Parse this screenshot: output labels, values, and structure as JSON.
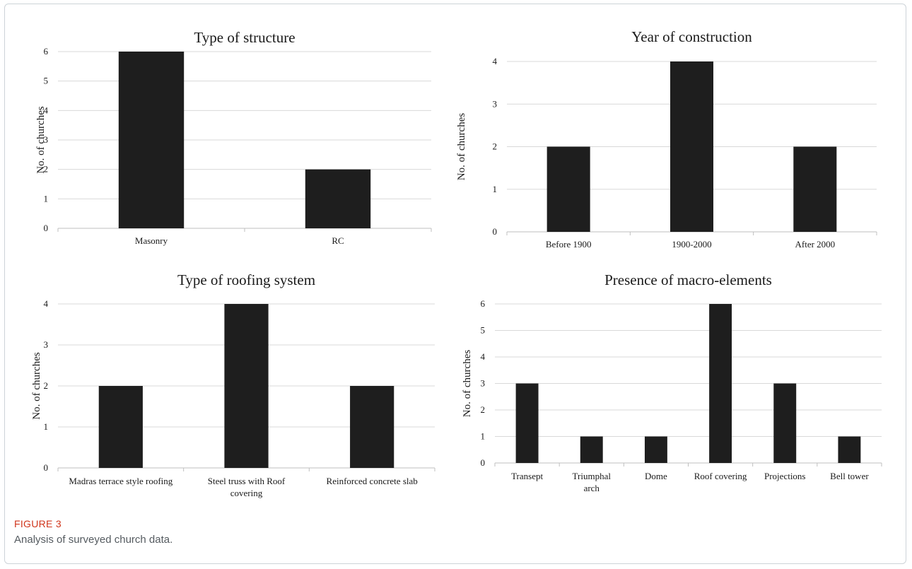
{
  "figure": {
    "label": "FIGURE 3",
    "caption": "Analysis of surveyed church data."
  },
  "colors": {
    "bar": "#1e1e1e",
    "grid": "#d9d9d9",
    "axis": "#bfbfbf",
    "text": "#1a1a1a"
  },
  "chart_data": [
    {
      "type": "bar",
      "title": "Type of structure",
      "ylabel": "No. of churches",
      "xlabel": "",
      "categories": [
        [
          "Masonry"
        ],
        [
          "RC"
        ]
      ],
      "values": [
        6,
        2
      ],
      "ylim": [
        0,
        6
      ],
      "yticks": [
        0,
        1,
        2,
        3,
        4,
        5,
        6
      ],
      "grid": true
    },
    {
      "type": "bar",
      "title": "Year of construction",
      "ylabel": "No. of churches",
      "xlabel": "",
      "categories": [
        [
          "Before 1900"
        ],
        [
          "1900-2000"
        ],
        [
          "After 2000"
        ]
      ],
      "values": [
        2,
        4,
        2
      ],
      "ylim": [
        0,
        4
      ],
      "yticks": [
        0,
        1,
        2,
        3,
        4
      ],
      "grid": true
    },
    {
      "type": "bar",
      "title": "Type of roofing system",
      "ylabel": "No. of churches",
      "xlabel": "",
      "categories": [
        [
          "Madras terrace style roofing"
        ],
        [
          "Steel truss with Roof",
          "covering"
        ],
        [
          "Reinforced concrete slab"
        ]
      ],
      "values": [
        2,
        4,
        2
      ],
      "ylim": [
        0,
        4
      ],
      "yticks": [
        0,
        1,
        2,
        3,
        4
      ],
      "grid": true
    },
    {
      "type": "bar",
      "title": "Presence of macro-elements",
      "ylabel": "No. of churches",
      "xlabel": "",
      "categories": [
        [
          "Transept"
        ],
        [
          "Triumphal",
          "arch"
        ],
        [
          "Dome"
        ],
        [
          "Roof covering"
        ],
        [
          "Projections"
        ],
        [
          "Bell tower"
        ]
      ],
      "values": [
        3,
        1,
        1,
        6,
        3,
        1
      ],
      "ylim": [
        0,
        6
      ],
      "yticks": [
        0,
        1,
        2,
        3,
        4,
        5,
        6
      ],
      "grid": true
    }
  ]
}
